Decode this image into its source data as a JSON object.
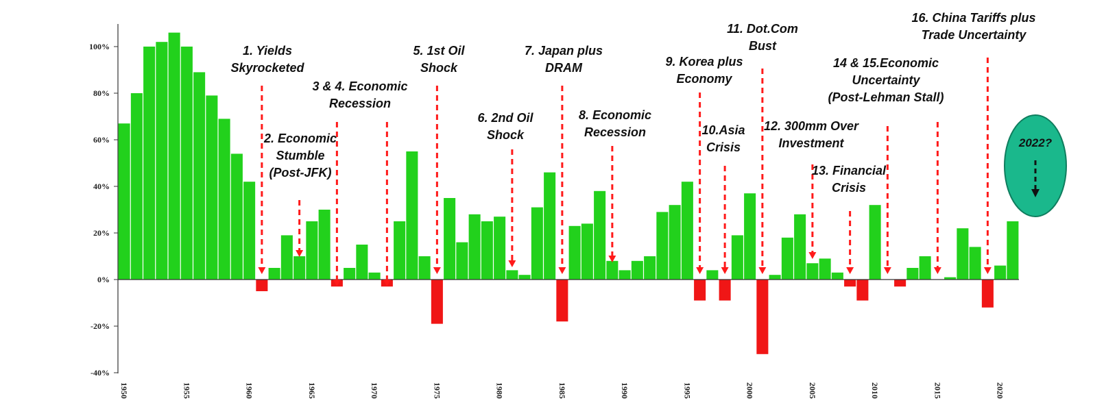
{
  "chart_data": {
    "type": "bar",
    "xlabel": "",
    "ylabel": "",
    "ylim": [
      -40,
      110
    ],
    "yticks": [
      -40,
      -20,
      0,
      20,
      40,
      60,
      80,
      100
    ],
    "ytick_labels": [
      "-40%",
      "-20%",
      "0%",
      "20%",
      "40%",
      "60%",
      "80%",
      "100%"
    ],
    "x": [
      1950,
      1951,
      1952,
      1953,
      1954,
      1955,
      1956,
      1957,
      1958,
      1959,
      1960,
      1961,
      1962,
      1963,
      1964,
      1965,
      1966,
      1967,
      1968,
      1969,
      1970,
      1971,
      1972,
      1973,
      1974,
      1975,
      1976,
      1977,
      1978,
      1979,
      1980,
      1981,
      1982,
      1983,
      1984,
      1985,
      1986,
      1987,
      1988,
      1989,
      1990,
      1991,
      1992,
      1993,
      1994,
      1995,
      1996,
      1997,
      1998,
      1999,
      2000,
      2001,
      2002,
      2003,
      2004,
      2005,
      2006,
      2007,
      2008,
      2009,
      2010,
      2011,
      2012,
      2013,
      2014,
      2015,
      2016,
      2017,
      2018,
      2019,
      2020,
      2021
    ],
    "values": [
      67,
      80,
      100,
      102,
      106,
      100,
      89,
      79,
      69,
      54,
      42,
      -5,
      5,
      19,
      10,
      25,
      30,
      -3,
      5,
      15,
      3,
      -3,
      25,
      55,
      10,
      -19,
      35,
      16,
      28,
      25,
      27,
      4,
      2,
      31,
      46,
      -18,
      23,
      24,
      38,
      8,
      4,
      8,
      10,
      29,
      32,
      42,
      -9,
      4,
      -9,
      19,
      37,
      -32,
      2,
      18,
      28,
      7,
      9,
      3,
      -3,
      -9,
      32,
      0,
      -3,
      5,
      10,
      0,
      1,
      22,
      14,
      -12,
      6,
      25
    ],
    "xtick_labels": [
      "1950",
      "1955",
      "1960",
      "1965",
      "1970",
      "1975",
      "1980",
      "1985",
      "1990",
      "1995",
      "2000",
      "2005",
      "2010",
      "2015",
      "2020"
    ],
    "positive_color": "#22d11c",
    "negative_color": "#f01616",
    "annotations": [
      {
        "lines": [
          "1. Yields",
          "Skyrocketed"
        ],
        "year": 1961
      },
      {
        "lines": [
          "2. Economic",
          "Stumble",
          "(Post-JFK)"
        ],
        "year": 1964
      },
      {
        "lines": [
          "3 & 4. Economic",
          "Recession"
        ],
        "year": 1967,
        "year2": 1971
      },
      {
        "lines": [
          "5. 1st Oil",
          "Shock"
        ],
        "year": 1975
      },
      {
        "lines": [
          "6. 2nd Oil",
          "Shock"
        ],
        "year": 1981
      },
      {
        "lines": [
          "7. Japan plus",
          "DRAM"
        ],
        "year": 1985
      },
      {
        "lines": [
          "8. Economic",
          "Recession"
        ],
        "year": 1989
      },
      {
        "lines": [
          "9. Korea plus",
          "Economy"
        ],
        "year": 1996
      },
      {
        "lines": [
          "10.Asia",
          "Crisis"
        ],
        "year": 1998
      },
      {
        "lines": [
          "11. Dot.Com",
          "Bust"
        ],
        "year": 2001
      },
      {
        "lines": [
          "12. 300mm Over",
          "Investment"
        ],
        "year": 2005
      },
      {
        "lines": [
          "13. Financial",
          "Crisis"
        ],
        "year": 2008
      },
      {
        "lines": [
          "14 & 15.Economic",
          "Uncertainty",
          "(Post-Lehman Stall)"
        ],
        "year": 2011,
        "year2": 2015
      },
      {
        "lines": [
          "16. China Tariffs plus",
          "Trade Uncertainty"
        ],
        "year": 2019
      }
    ],
    "forecast_badge": {
      "label": "2022?",
      "color": "#1ab88c"
    }
  }
}
